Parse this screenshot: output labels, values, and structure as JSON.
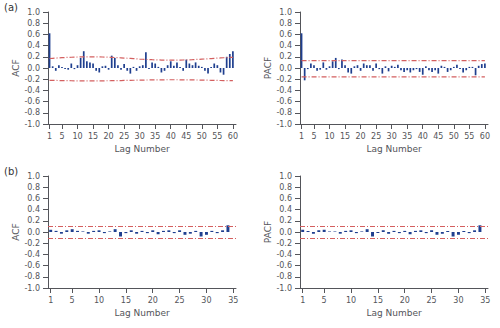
{
  "chart_data": [
    {
      "type": "bar",
      "annotations": [
        "(a)"
      ],
      "xlabel": "Lag Number",
      "ylabel": "ACF",
      "x": [
        1,
        2,
        3,
        4,
        5,
        6,
        7,
        8,
        9,
        10,
        11,
        12,
        13,
        14,
        15,
        16,
        17,
        18,
        19,
        20,
        21,
        22,
        23,
        24,
        25,
        26,
        27,
        28,
        29,
        30,
        31,
        32,
        33,
        34,
        35,
        36,
        37,
        38,
        39,
        40,
        41,
        42,
        43,
        44,
        45,
        46,
        47,
        48,
        49,
        50,
        51,
        52,
        53,
        54,
        55,
        56,
        57,
        58,
        59,
        60
      ],
      "xlim": [
        0.5,
        61
      ],
      "xticks": [
        1,
        5,
        10,
        15,
        20,
        25,
        30,
        35,
        40,
        45,
        50,
        55,
        60
      ],
      "ylim": [
        -1.0,
        1.0
      ],
      "yticks": [
        {
          "value": -1.0,
          "label": "-1.0"
        },
        -0.8,
        -0.6,
        -0.4,
        -0.2,
        {
          "value": 0.0,
          "label": "0.0"
        },
        0.2,
        0.4,
        0.6,
        0.8,
        {
          "value": 1.0,
          "label": "1.0"
        }
      ],
      "grid": false,
      "series": [
        {
          "type": "bar",
          "color": "#1f3f8f",
          "values": [
            0.62,
            0.03,
            -0.05,
            0.05,
            0.02,
            -0.02,
            -0.03,
            0.08,
            -0.02,
            0.05,
            0.18,
            0.3,
            0.12,
            0.1,
            0.08,
            -0.05,
            -0.08,
            0.03,
            0.04,
            -0.03,
            0.22,
            0.18,
            0.05,
            -0.03,
            0.07,
            -0.05,
            -0.1,
            0.02,
            -0.05,
            0.03,
            0.05,
            0.28,
            -0.02,
            0.1,
            0.08,
            0.02,
            -0.08,
            -0.05,
            0.05,
            0.12,
            0.04,
            0.1,
            0.02,
            -0.05,
            0.15,
            0.08,
            0.05,
            0.1,
            0.04,
            0.02,
            -0.05,
            -0.1,
            0.02,
            0.08,
            0.05,
            -0.08,
            -0.12,
            0.2,
            0.25,
            0.3
          ]
        },
        {
          "type": "line",
          "color": "#d45f5f",
          "line_style": "dashdot",
          "values": [
            0.17,
            0.1736,
            0.1771,
            0.1806,
            0.1839,
            0.1869,
            0.1898,
            0.1923,
            0.1946,
            0.1965,
            0.198,
            0.1991,
            0.1997,
            0.2,
            0.1998,
            0.1992,
            0.1982,
            0.1968,
            0.1949,
            0.1928,
            0.1903,
            0.1875,
            0.1844,
            0.1812,
            0.1778,
            0.1742,
            0.1706,
            0.1671,
            0.1635,
            0.16,
            0.1567,
            0.1536,
            0.1507,
            0.1481,
            0.1458,
            0.1439,
            0.1423,
            0.1411,
            0.1403,
            0.14,
            0.1401,
            0.1406,
            0.1416,
            0.143,
            0.1447,
            0.1468,
            0.1493,
            0.152,
            0.155,
            0.1582,
            0.1616,
            0.1651,
            0.1687,
            0.1723,
            0.1759,
            0.1793,
            0.1827,
            0.1859,
            0.1888,
            0.1915
          ]
        },
        {
          "type": "line",
          "color": "#d45f5f",
          "line_style": "dashdot",
          "values": [
            -0.22,
            -0.2212,
            -0.2224,
            -0.2235,
            -0.2246,
            -0.2256,
            -0.2266,
            -0.2274,
            -0.2282,
            -0.2288,
            -0.2293,
            -0.2297,
            -0.2299,
            -0.23,
            -0.2299,
            -0.2297,
            -0.2294,
            -0.2289,
            -0.2283,
            -0.2276,
            -0.2268,
            -0.2258,
            -0.2248,
            -0.2237,
            -0.2226,
            -0.2214,
            -0.2202,
            -0.219,
            -0.2178,
            -0.2167,
            -0.2156,
            -0.2145,
            -0.2136,
            -0.2127,
            -0.2119,
            -0.2113,
            -0.2108,
            -0.2104,
            -0.2101,
            -0.21,
            -0.21,
            -0.2102,
            -0.2105,
            -0.211,
            -0.2116,
            -0.2123,
            -0.2131,
            -0.214,
            -0.215,
            -0.2161,
            -0.2172,
            -0.2184,
            -0.2196,
            -0.2208,
            -0.222,
            -0.2231,
            -0.2242,
            -0.2253,
            -0.2263,
            -0.2272
          ]
        }
      ]
    },
    {
      "type": "bar",
      "xlabel": "Lag Number",
      "ylabel": "PACF",
      "x": [
        1,
        2,
        3,
        4,
        5,
        6,
        7,
        8,
        9,
        10,
        11,
        12,
        13,
        14,
        15,
        16,
        17,
        18,
        19,
        20,
        21,
        22,
        23,
        24,
        25,
        26,
        27,
        28,
        29,
        30,
        31,
        32,
        33,
        34,
        35,
        36,
        37,
        38,
        39,
        40,
        41,
        42,
        43,
        44,
        45,
        46,
        47,
        48,
        49,
        50,
        51,
        52,
        53,
        54,
        55,
        56,
        57,
        58,
        59,
        60
      ],
      "xlim": [
        0.5,
        61
      ],
      "xticks": [
        1,
        5,
        10,
        15,
        20,
        25,
        30,
        35,
        40,
        45,
        50,
        55,
        60
      ],
      "ylim": [
        -1.0,
        1.0
      ],
      "yticks": [
        {
          "value": -1.0,
          "label": "-1.0"
        },
        -0.8,
        -0.6,
        -0.4,
        -0.2,
        {
          "value": 0.0,
          "label": "0.0"
        },
        0.2,
        0.4,
        0.6,
        0.8,
        {
          "value": 1.0,
          "label": "1.0"
        }
      ],
      "grid": false,
      "series": [
        {
          "type": "bar",
          "color": "#1f3f8f",
          "values": [
            0.62,
            -0.22,
            -0.02,
            0.08,
            0.05,
            -0.05,
            -0.03,
            0.1,
            -0.03,
            0.03,
            0.12,
            0.18,
            -0.02,
            0.15,
            0.05,
            -0.08,
            -0.1,
            0.03,
            0.05,
            -0.05,
            0.08,
            0.05,
            0.05,
            -0.05,
            0.08,
            -0.02,
            -0.1,
            0.03,
            -0.06,
            0.04,
            0.02,
            0.06,
            -0.04,
            -0.07,
            -0.04,
            -0.08,
            -0.04,
            -0.02,
            -0.07,
            -0.12,
            0.03,
            -0.04,
            -0.07,
            -0.04,
            -0.1,
            0.04,
            0.02,
            -0.07,
            -0.04,
            0.02,
            0.06,
            -0.02,
            -0.08,
            -0.04,
            0.02,
            0.02,
            -0.13,
            0.04,
            0.07,
            0.08
          ]
        },
        {
          "type": "line",
          "color": "#d45f5f",
          "line_style": "dashdot",
          "values": [
            0.13,
            0.13,
            0.13,
            0.13,
            0.13,
            0.13,
            0.13,
            0.13,
            0.13,
            0.13,
            0.13,
            0.13,
            0.13,
            0.13,
            0.13,
            0.13,
            0.13,
            0.13,
            0.13,
            0.13,
            0.13,
            0.13,
            0.13,
            0.13,
            0.13,
            0.13,
            0.13,
            0.13,
            0.13,
            0.13,
            0.13,
            0.13,
            0.13,
            0.13,
            0.13,
            0.13,
            0.13,
            0.13,
            0.13,
            0.13,
            0.13,
            0.13,
            0.13,
            0.13,
            0.13,
            0.13,
            0.13,
            0.13,
            0.13,
            0.13,
            0.13,
            0.13,
            0.13,
            0.13,
            0.13,
            0.13,
            0.13,
            0.13,
            0.13,
            0.13
          ]
        },
        {
          "type": "line",
          "color": "#d45f5f",
          "line_style": "dashdot",
          "values": [
            -0.16,
            -0.16,
            -0.16,
            -0.16,
            -0.16,
            -0.16,
            -0.16,
            -0.16,
            -0.16,
            -0.16,
            -0.16,
            -0.16,
            -0.16,
            -0.16,
            -0.16,
            -0.16,
            -0.16,
            -0.16,
            -0.16,
            -0.16,
            -0.16,
            -0.16,
            -0.16,
            -0.16,
            -0.16,
            -0.16,
            -0.16,
            -0.16,
            -0.16,
            -0.16,
            -0.16,
            -0.16,
            -0.16,
            -0.16,
            -0.16,
            -0.16,
            -0.16,
            -0.16,
            -0.16,
            -0.16,
            -0.16,
            -0.16,
            -0.16,
            -0.16,
            -0.16,
            -0.16,
            -0.16,
            -0.16,
            -0.16,
            -0.16,
            -0.16,
            -0.16,
            -0.16,
            -0.16,
            -0.16,
            -0.16,
            -0.16,
            -0.16,
            -0.16,
            -0.16
          ]
        }
      ]
    },
    {
      "type": "bar",
      "annotations": [
        "(b)"
      ],
      "xlabel": "Lag Number",
      "ylabel": "ACF",
      "x": [
        1,
        2,
        3,
        4,
        5,
        6,
        7,
        8,
        9,
        10,
        11,
        12,
        13,
        14,
        15,
        16,
        17,
        18,
        19,
        20,
        21,
        22,
        23,
        24,
        25,
        26,
        27,
        28,
        29,
        30,
        31,
        32,
        33,
        34
      ],
      "xlim": [
        0.5,
        35.5
      ],
      "xticks": [
        1,
        5,
        10,
        15,
        20,
        25,
        30,
        35
      ],
      "ylim": [
        -1.0,
        1.0
      ],
      "yticks": [
        {
          "value": -1.0,
          "label": "-1.0"
        },
        -0.8,
        -0.6,
        -0.4,
        -0.2,
        {
          "value": 0.0,
          "label": "0.0"
        },
        0.2,
        0.4,
        0.6,
        0.8,
        {
          "value": 1.0,
          "label": "1.0"
        }
      ],
      "grid": false,
      "series": [
        {
          "type": "bar",
          "color": "#1f3f8f",
          "values": [
            0.04,
            0.02,
            -0.03,
            0.03,
            0.05,
            0.02,
            0.01,
            -0.03,
            0.02,
            0.03,
            -0.02,
            0.01,
            0.05,
            -0.08,
            -0.02,
            0.03,
            -0.03,
            0.02,
            -0.02,
            0.03,
            -0.04,
            0.02,
            0.03,
            -0.02,
            0.03,
            -0.05,
            -0.03,
            0.02,
            -0.08,
            -0.05,
            0.02,
            -0.02,
            0.03,
            0.12
          ]
        },
        {
          "type": "hline",
          "color": "#d45f5f",
          "line_style": "dashdot",
          "value": 0.11
        },
        {
          "type": "hline",
          "color": "#d45f5f",
          "line_style": "dashdot",
          "value": -0.12
        }
      ]
    },
    {
      "type": "bar",
      "xlabel": "Lag Number",
      "ylabel": "PACF",
      "x": [
        1,
        2,
        3,
        4,
        5,
        6,
        7,
        8,
        9,
        10,
        11,
        12,
        13,
        14,
        15,
        16,
        17,
        18,
        19,
        20,
        21,
        22,
        23,
        24,
        25,
        26,
        27,
        28,
        29,
        30,
        31,
        32,
        33,
        34
      ],
      "xlim": [
        0.5,
        35.5
      ],
      "xticks": [
        1,
        5,
        10,
        15,
        20,
        25,
        30,
        35
      ],
      "ylim": [
        -1.0,
        1.0
      ],
      "yticks": [
        {
          "value": -1.0,
          "label": "-1.0"
        },
        -0.8,
        -0.6,
        -0.4,
        -0.2,
        {
          "value": 0.0,
          "label": "0.0"
        },
        0.2,
        0.4,
        0.6,
        0.8,
        {
          "value": 1.0,
          "label": "1.0"
        }
      ],
      "grid": false,
      "series": [
        {
          "type": "bar",
          "color": "#1f3f8f",
          "values": [
            0.04,
            0.02,
            -0.03,
            0.03,
            0.04,
            0.01,
            0.01,
            -0.03,
            0.02,
            0.03,
            -0.02,
            0.01,
            0.05,
            -0.08,
            -0.02,
            0.03,
            -0.03,
            0.02,
            -0.02,
            0.02,
            -0.04,
            0.02,
            0.03,
            -0.02,
            0.03,
            -0.05,
            -0.03,
            0.02,
            -0.08,
            -0.05,
            0.02,
            -0.02,
            0.03,
            0.12
          ]
        },
        {
          "type": "hline",
          "color": "#d45f5f",
          "line_style": "dashdot",
          "value": 0.11
        },
        {
          "type": "hline",
          "color": "#d45f5f",
          "line_style": "dashdot",
          "value": -0.12
        }
      ]
    }
  ]
}
